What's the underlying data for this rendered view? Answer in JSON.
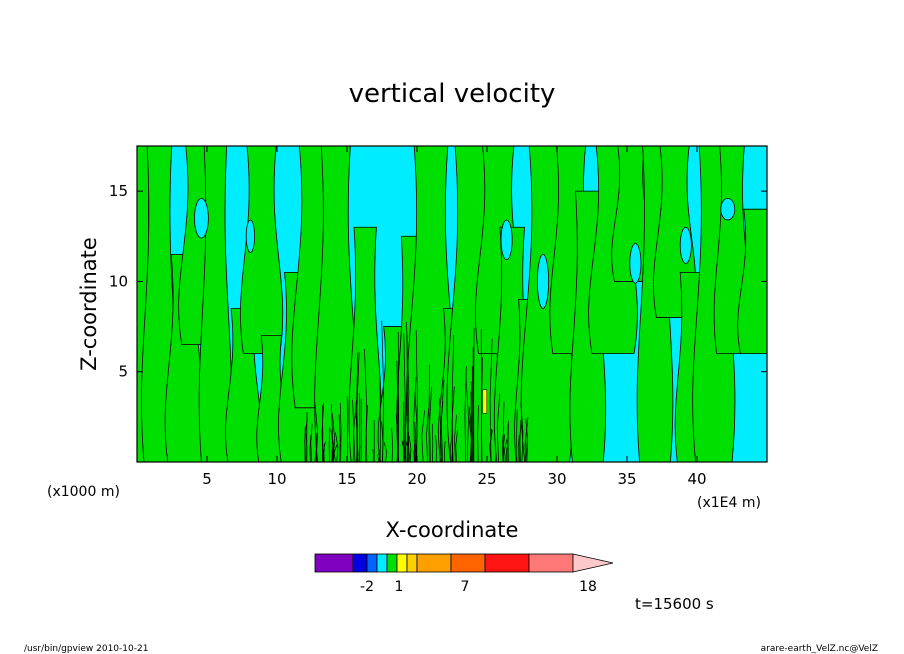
{
  "chart_data": {
    "type": "heatmap",
    "title": "vertical velocity",
    "xlabel": "X-coordinate",
    "ylabel": "Z-coordinate",
    "x_unit": "(x1E4 m)",
    "y_unit": "(x1000 m)",
    "xlim": [
      0,
      45
    ],
    "ylim": [
      0,
      17.5
    ],
    "x_ticks": [
      5,
      10,
      15,
      20,
      25,
      30,
      35,
      40
    ],
    "y_ticks": [
      5,
      10,
      15
    ],
    "background_color": "#00ecff",
    "contour_level_color": "#00e000",
    "colorbar": {
      "colors": [
        "#8000c0",
        "#0000e0",
        "#0064ff",
        "#00ecff",
        "#00e000",
        "#ffff00",
        "#ffd000",
        "#ffa000",
        "#ff6400",
        "#ff1414",
        "#ff7878",
        "#ffc8c8"
      ],
      "tick_labels": [
        "-2",
        "1",
        "7",
        "18"
      ]
    },
    "time_label": "t=15600 s"
  },
  "footer": {
    "left": "/usr/bin/gpview   2010-10-21",
    "right": "arare-earth_VelZ.nc@VelZ"
  }
}
